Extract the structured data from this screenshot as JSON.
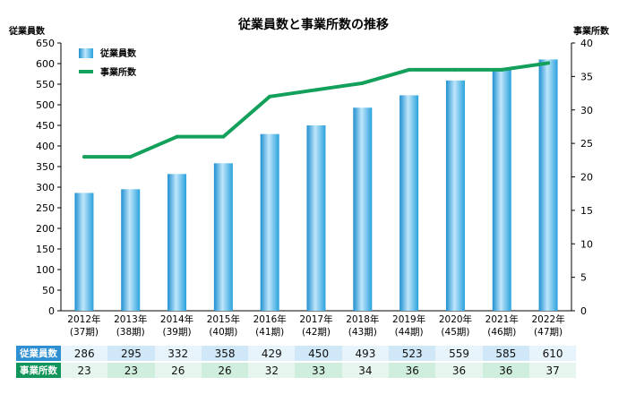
{
  "chart_data": {
    "type": "bar",
    "title": "従業員数と事業所数の推移",
    "categories": [
      [
        "2012年",
        "(37期)"
      ],
      [
        "2013年",
        "(38期)"
      ],
      [
        "2014年",
        "(39期)"
      ],
      [
        "2015年",
        "(40期)"
      ],
      [
        "2016年",
        "(41期)"
      ],
      [
        "2017年",
        "(42期)"
      ],
      [
        "2018年",
        "(43期)"
      ],
      [
        "2019年",
        "(44期)"
      ],
      [
        "2020年",
        "(45期)"
      ],
      [
        "2021年",
        "(46期)"
      ],
      [
        "2022年",
        "(47期)"
      ]
    ],
    "series": [
      {
        "name": "従業員数",
        "type": "bar",
        "axis": "left",
        "color": "#2a9fd8",
        "values": [
          286,
          295,
          332,
          358,
          429,
          450,
          493,
          523,
          559,
          585,
          610
        ]
      },
      {
        "name": "事業所数",
        "type": "line",
        "axis": "right",
        "color": "#12a05a",
        "values": [
          23,
          23,
          26,
          26,
          32,
          33,
          34,
          36,
          36,
          36,
          37
        ]
      }
    ],
    "y_left": {
      "label": "従業員数",
      "min": 0,
      "max": 650,
      "step": 50
    },
    "y_right": {
      "label": "事業所数",
      "min": 0,
      "max": 40,
      "step": 5
    },
    "grid": false,
    "legend": "top-left"
  },
  "table": {
    "rows": [
      {
        "label": "従業員数",
        "values": [
          "286",
          "295",
          "332",
          "358",
          "429",
          "450",
          "493",
          "523",
          "559",
          "585",
          "610"
        ]
      },
      {
        "label": "事業所数",
        "values": [
          "23",
          "23",
          "26",
          "26",
          "32",
          "33",
          "34",
          "36",
          "36",
          "36",
          "37"
        ]
      }
    ]
  }
}
